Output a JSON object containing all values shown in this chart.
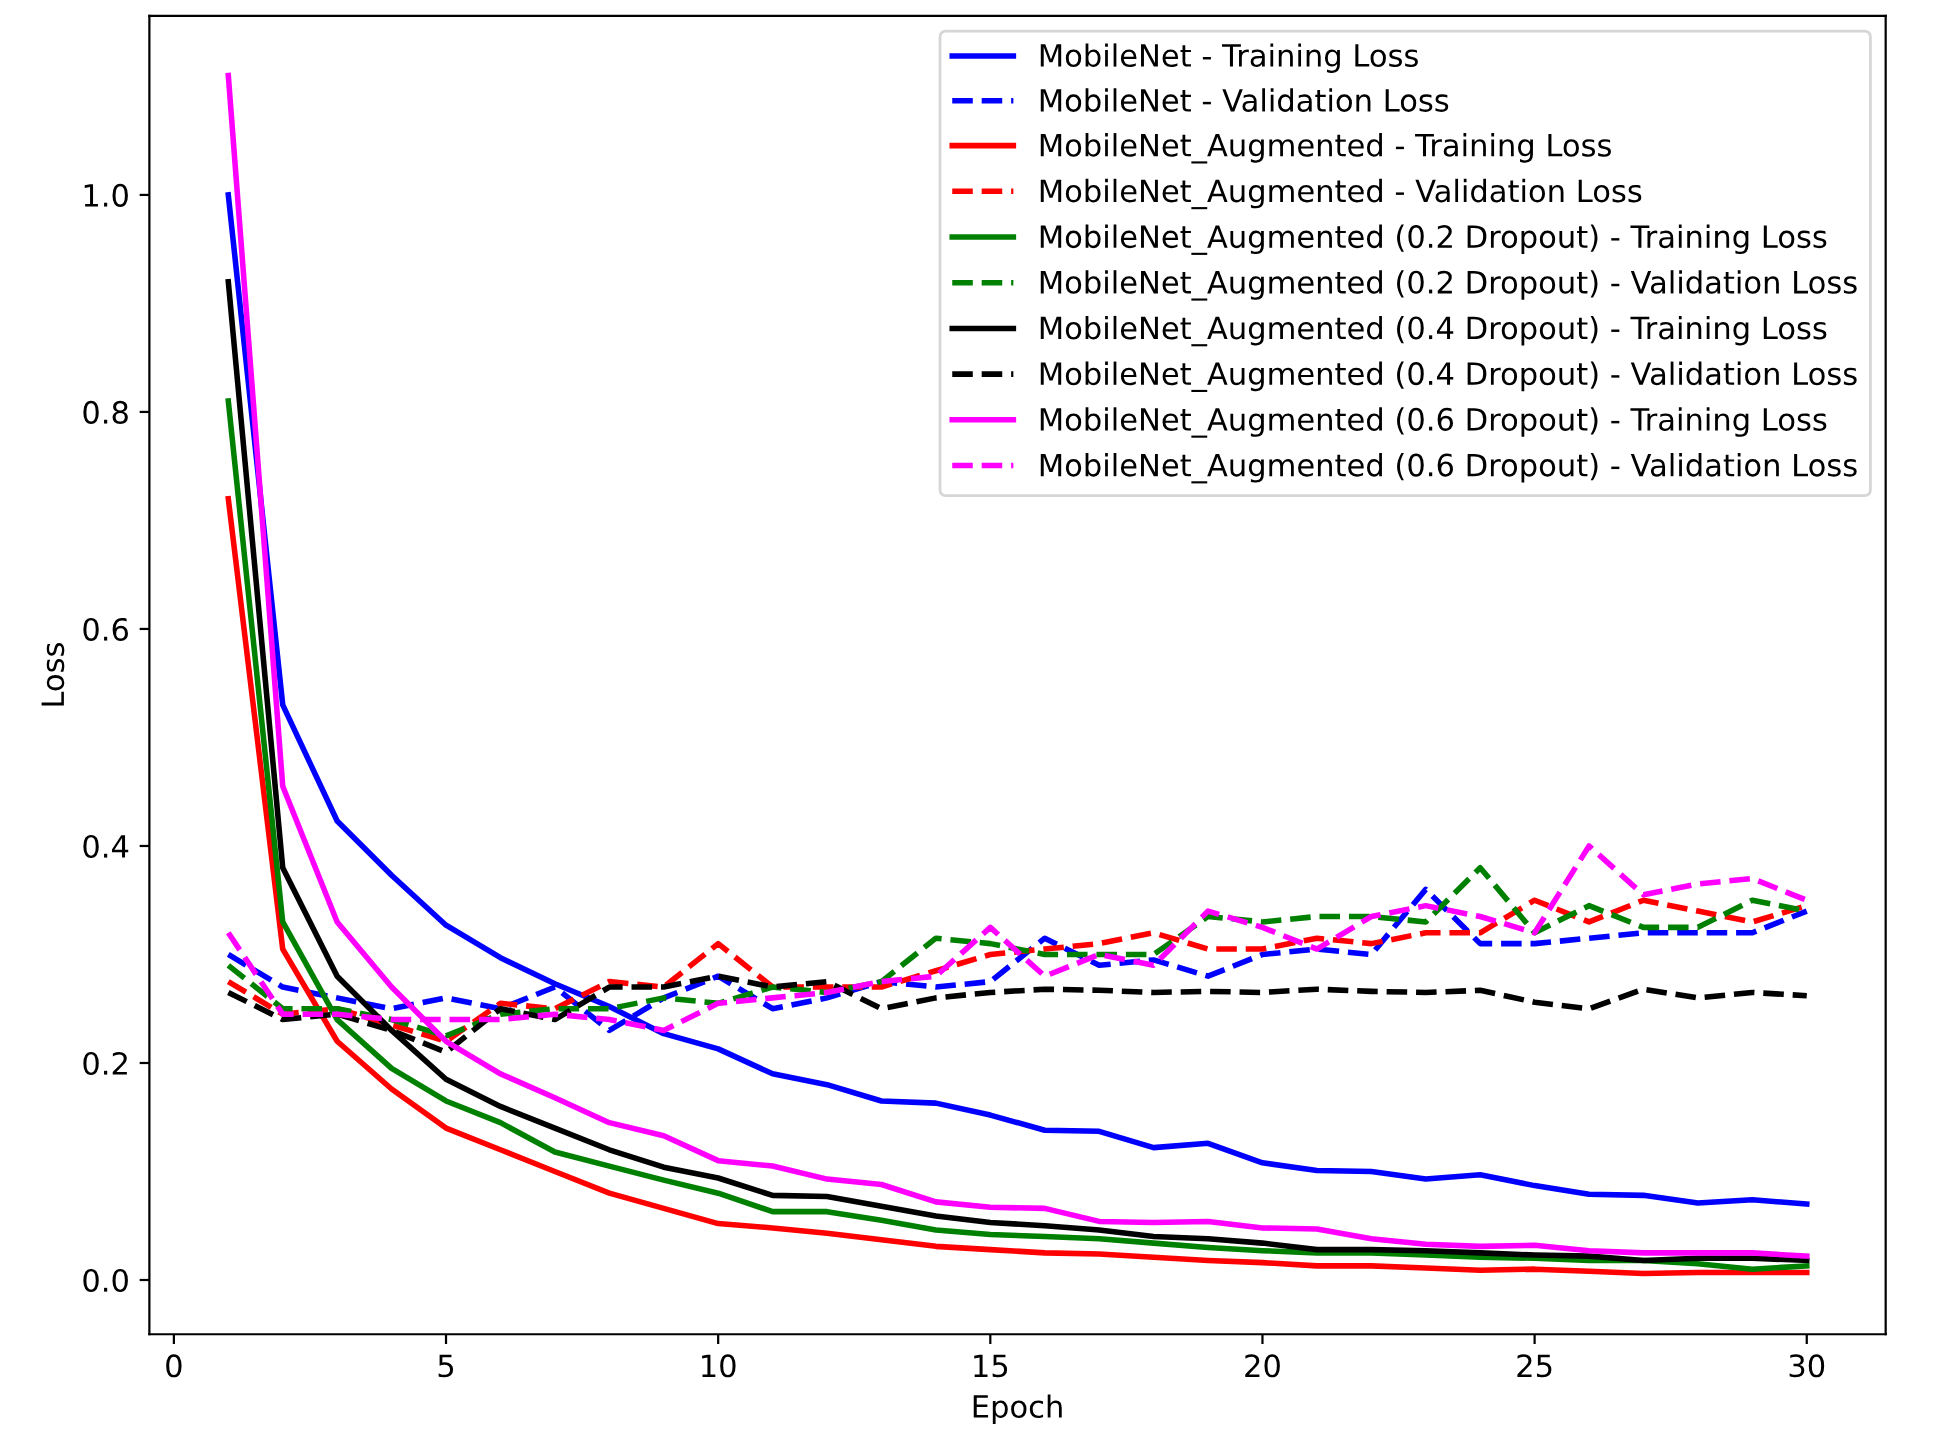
{
  "chart_data": {
    "type": "line",
    "xlabel": "Epoch",
    "ylabel": "Loss",
    "x": [
      1,
      2,
      3,
      4,
      5,
      6,
      7,
      8,
      9,
      10,
      11,
      12,
      13,
      14,
      15,
      16,
      17,
      18,
      19,
      20,
      21,
      22,
      23,
      24,
      25,
      26,
      27,
      28,
      29,
      30
    ],
    "xlim": [
      -0.45,
      31.45
    ],
    "xticks": [
      0,
      5,
      10,
      15,
      20,
      25,
      30
    ],
    "ylim": [
      -0.05,
      1.165
    ],
    "yticks": [
      {
        "value": 0,
        "label": "0.0"
      },
      {
        "value": 0.2,
        "label": "0.2"
      },
      {
        "value": 0.4,
        "label": "0.4"
      },
      {
        "value": 0.6,
        "label": "0.6"
      },
      {
        "value": 0.8,
        "label": "0.8"
      },
      {
        "value": 1.0,
        "label": "1.0"
      }
    ],
    "grid": false,
    "legend": "top right",
    "marker": "none",
    "series": [
      {
        "name": "MobileNet - Training Loss",
        "color": "#0000ff",
        "line_style": "solid",
        "values": [
          1.0,
          0.53,
          0.423,
          0.373,
          0.327,
          0.297,
          0.273,
          0.252,
          0.227,
          0.213,
          0.19,
          0.18,
          0.165,
          0.163,
          0.152,
          0.138,
          0.137,
          0.122,
          0.126,
          0.108,
          0.101,
          0.1,
          0.093,
          0.097,
          0.087,
          0.079,
          0.078,
          0.071,
          0.074,
          0.07
        ]
      },
      {
        "name": "MobileNet - Validation Loss",
        "color": "#0000ff",
        "line_style": "dashed",
        "values": [
          0.3,
          0.27,
          0.26,
          0.25,
          0.26,
          0.25,
          0.27,
          0.23,
          0.26,
          0.28,
          0.25,
          0.26,
          0.275,
          0.27,
          0.275,
          0.315,
          0.29,
          0.295,
          0.28,
          0.3,
          0.305,
          0.3,
          0.36,
          0.31,
          0.31,
          0.315,
          0.32,
          0.32,
          0.32,
          0.34
        ]
      },
      {
        "name": "MobileNet_Augmented - Training Loss",
        "color": "#ff0000",
        "line_style": "solid",
        "values": [
          0.72,
          0.305,
          0.22,
          0.176,
          0.14,
          0.12,
          0.1,
          0.08,
          0.066,
          0.052,
          0.048,
          0.043,
          0.037,
          0.031,
          0.028,
          0.025,
          0.024,
          0.021,
          0.018,
          0.016,
          0.013,
          0.013,
          0.011,
          0.009,
          0.01,
          0.008,
          0.006,
          0.007,
          0.007,
          0.007
        ]
      },
      {
        "name": "MobileNet_Augmented - Validation Loss",
        "color": "#ff0000",
        "line_style": "dashed",
        "values": [
          0.275,
          0.245,
          0.25,
          0.235,
          0.22,
          0.255,
          0.25,
          0.275,
          0.27,
          0.31,
          0.27,
          0.27,
          0.27,
          0.285,
          0.3,
          0.305,
          0.31,
          0.32,
          0.305,
          0.305,
          0.315,
          0.31,
          0.32,
          0.32,
          0.35,
          0.33,
          0.35,
          0.34,
          0.33,
          0.345
        ]
      },
      {
        "name": "MobileNet_Augmented (0.2 Dropout) - Training Loss",
        "color": "#008000",
        "line_style": "solid",
        "values": [
          0.81,
          0.33,
          0.24,
          0.195,
          0.165,
          0.145,
          0.118,
          0.105,
          0.092,
          0.08,
          0.063,
          0.063,
          0.055,
          0.046,
          0.042,
          0.04,
          0.038,
          0.034,
          0.03,
          0.027,
          0.025,
          0.025,
          0.023,
          0.021,
          0.02,
          0.018,
          0.018,
          0.015,
          0.01,
          0.013
        ]
      },
      {
        "name": "MobileNet_Augmented (0.2 Dropout) - Validation Loss",
        "color": "#008000",
        "line_style": "dashed",
        "values": [
          0.29,
          0.25,
          0.25,
          0.24,
          0.225,
          0.245,
          0.25,
          0.25,
          0.26,
          0.255,
          0.27,
          0.265,
          0.275,
          0.315,
          0.31,
          0.3,
          0.3,
          0.3,
          0.335,
          0.33,
          0.335,
          0.335,
          0.33,
          0.38,
          0.32,
          0.345,
          0.325,
          0.325,
          0.35,
          0.34
        ]
      },
      {
        "name": "MobileNet_Augmented (0.4 Dropout) - Training Loss",
        "color": "#000000",
        "line_style": "solid",
        "values": [
          0.92,
          0.38,
          0.28,
          0.23,
          0.185,
          0.16,
          0.14,
          0.12,
          0.104,
          0.094,
          0.078,
          0.077,
          0.068,
          0.059,
          0.053,
          0.05,
          0.046,
          0.04,
          0.038,
          0.034,
          0.028,
          0.028,
          0.027,
          0.025,
          0.023,
          0.022,
          0.018,
          0.02,
          0.02,
          0.018
        ]
      },
      {
        "name": "MobileNet_Augmented (0.4 Dropout) - Validation Loss",
        "color": "#000000",
        "line_style": "dashed",
        "values": [
          0.265,
          0.24,
          0.245,
          0.23,
          0.21,
          0.25,
          0.24,
          0.27,
          0.27,
          0.28,
          0.27,
          0.275,
          0.25,
          0.26,
          0.265,
          0.268,
          0.267,
          0.265,
          0.266,
          0.265,
          0.268,
          0.266,
          0.265,
          0.267,
          0.256,
          0.25,
          0.268,
          0.26,
          0.265,
          0.262
        ]
      },
      {
        "name": "MobileNet_Augmented (0.6 Dropout) - Training Loss",
        "color": "#ff00ff",
        "line_style": "solid",
        "values": [
          1.11,
          0.455,
          0.33,
          0.27,
          0.22,
          0.19,
          0.168,
          0.145,
          0.133,
          0.11,
          0.105,
          0.093,
          0.088,
          0.072,
          0.067,
          0.066,
          0.054,
          0.053,
          0.054,
          0.048,
          0.047,
          0.038,
          0.033,
          0.031,
          0.032,
          0.027,
          0.025,
          0.025,
          0.025,
          0.022
        ]
      },
      {
        "name": "MobileNet_Augmented (0.6 Dropout) - Validation Loss",
        "color": "#ff00ff",
        "line_style": "dashed",
        "values": [
          0.32,
          0.245,
          0.245,
          0.24,
          0.24,
          0.24,
          0.245,
          0.24,
          0.23,
          0.255,
          0.26,
          0.265,
          0.275,
          0.28,
          0.325,
          0.28,
          0.3,
          0.29,
          0.34,
          0.325,
          0.305,
          0.335,
          0.345,
          0.335,
          0.32,
          0.4,
          0.355,
          0.365,
          0.37,
          0.35
        ]
      }
    ]
  }
}
